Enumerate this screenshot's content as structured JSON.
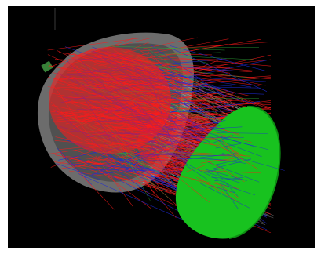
{
  "scene": {
    "background_color": "#000000",
    "frame_color": "#ffffff",
    "colors": {
      "housing": "#8c8c8c",
      "housing_inner": "#5a5a5a",
      "rays_primary": "#ff1a1a",
      "rays_secondary": "#1f2bd6",
      "rays_tertiary": "#2fae3a",
      "rays_faint": "#d9d9d9",
      "detector": "#18c21f",
      "detector_edge": "#0e8f13"
    }
  }
}
